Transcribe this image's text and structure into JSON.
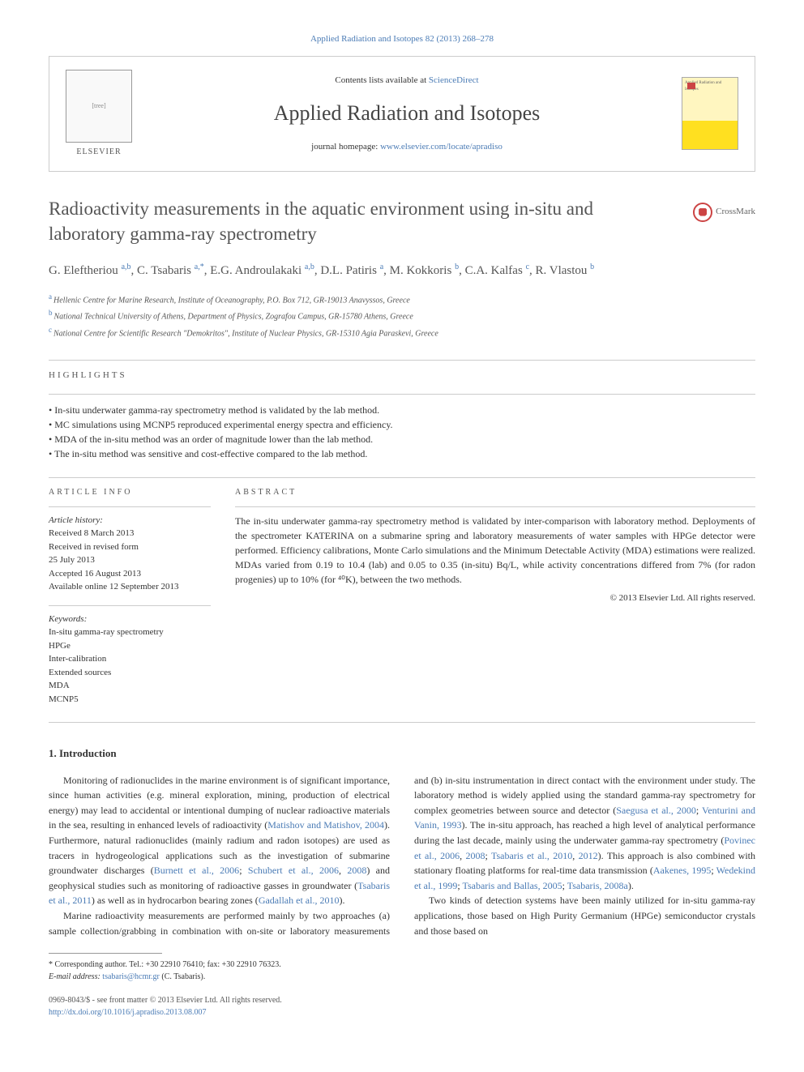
{
  "top_link": "Applied Radiation and Isotopes 82 (2013) 268–278",
  "header": {
    "contents_prefix": "Contents lists available at ",
    "contents_link": "ScienceDirect",
    "journal_name": "Applied Radiation and Isotopes",
    "homepage_prefix": "journal homepage: ",
    "homepage_url": "www.elsevier.com/locate/apradiso",
    "elsevier_label": "ELSEVIER",
    "cover_label": "Applied Radiation and Isotopes"
  },
  "article": {
    "title": "Radioactivity measurements in the aquatic environment using in-situ and laboratory gamma-ray spectrometry",
    "crossmark": "CrossMark",
    "authors_html": "G. Eleftheriou <span class='sup'>a,b</span>, C. Tsabaris <span class='sup'>a,*</span>, E.G. Androulakaki <span class='sup'>a,b</span>, D.L. Patiris <span class='sup'>a</span>, M. Kokkoris <span class='sup'>b</span>, C.A. Kalfas <span class='sup'>c</span>, R. Vlastou <span class='sup'>b</span>",
    "affiliations": [
      {
        "sup": "a",
        "text": "Hellenic Centre for Marine Research, Institute of Oceanography, P.O. Box 712, GR-19013 Anavyssos, Greece"
      },
      {
        "sup": "b",
        "text": "National Technical University of Athens, Department of Physics, Zografou Campus, GR-15780 Athens, Greece"
      },
      {
        "sup": "c",
        "text": "National Centre for Scientific Research \"Demokritos\", Institute of Nuclear Physics, GR-15310 Agia Paraskevi, Greece"
      }
    ]
  },
  "highlights": {
    "heading": "HIGHLIGHTS",
    "items": [
      "In-situ underwater gamma-ray spectrometry method is validated by the lab method.",
      "MC simulations using MCNP5 reproduced experimental energy spectra and efficiency.",
      "MDA of the in-situ method was an order of magnitude lower than the lab method.",
      "The in-situ method was sensitive and cost-effective compared to the lab method."
    ]
  },
  "article_info": {
    "heading": "ARTICLE INFO",
    "history_label": "Article history:",
    "history": [
      "Received 8 March 2013",
      "Received in revised form",
      "25 July 2013",
      "Accepted 16 August 2013",
      "Available online 12 September 2013"
    ],
    "keywords_label": "Keywords:",
    "keywords": [
      "In-situ gamma-ray spectrometry",
      "HPGe",
      "Inter-calibration",
      "Extended sources",
      "MDA",
      "MCNP5"
    ]
  },
  "abstract": {
    "heading": "ABSTRACT",
    "text": "The in-situ underwater gamma-ray spectrometry method is validated by inter-comparison with laboratory method. Deployments of the spectrometer KATERINA on a submarine spring and laboratory measurements of water samples with HPGe detector were performed. Efficiency calibrations, Monte Carlo simulations and the Minimum Detectable Activity (MDA) estimations were realized. MDAs varied from 0.19 to 10.4 (lab) and 0.05 to 0.35 (in-situ) Bq/L, while activity concentrations differed from 7% (for radon progenies) up to 10% (for ⁴⁰K), between the two methods.",
    "copyright": "© 2013 Elsevier Ltd. All rights reserved."
  },
  "intro": {
    "heading": "1.  Introduction",
    "p1_pre": "Monitoring of radionuclides in the marine environment is of significant importance, since human activities (e.g. mineral exploration, mining, production of electrical energy) may lead to accidental or intentional dumping of nuclear radioactive materials in the sea, resulting in enhanced levels of radioactivity (",
    "p1_cite1": "Matishov and Matishov, 2004",
    "p1_mid1": "). Furthermore, natural radionuclides (mainly radium and radon isotopes) are used as tracers in hydrogeological applications such as the investigation of submarine groundwater discharges (",
    "p1_cite2": "Burnett et al., 2006",
    "p1_sep2": "; ",
    "p1_cite3": "Schubert et al., 2006",
    "p1_sep3": ", ",
    "p1_cite4": "2008",
    "p1_mid2": ") and geophysical studies such as monitoring of radioactive gasses in groundwater (",
    "p1_cite5": "Tsabaris et al., 2011",
    "p1_mid3": ") as well as in hydrocarbon bearing zones (",
    "p1_cite6": "Gadallah et al., 2010",
    "p1_end": ").",
    "p2_pre": "Marine radioactivity measurements are performed mainly by two approaches (a) sample collection/grabbing in combination with on-site or laboratory measurements and (b) in-situ instrumentation in direct contact with the environment under study. The laboratory method is widely applied using the standard gamma-ray spectrometry for complex geometries between source and detector (",
    "p2_cite1": "Saegusa et al., 2000",
    "p2_sep1": "; ",
    "p2_cite2": "Venturini and Vanin, 1993",
    "p2_mid1": "). The in-situ approach, has reached a high level of analytical performance during the last decade, mainly using the underwater gamma-ray spectrometry (",
    "p2_cite3": "Povinec et al., 2006",
    "p2_sep3": ", ",
    "p2_cite4": "2008",
    "p2_sep4": "; ",
    "p2_cite5": "Tsabaris et al., 2010",
    "p2_sep5": ", ",
    "p2_cite6": "2012",
    "p2_mid2": "). This approach is also combined with stationary floating platforms for real-time data transmission (",
    "p2_cite7": "Aakenes, 1995",
    "p2_sep7": "; ",
    "p2_cite8": "Wedekind et al., 1999",
    "p2_sep8": "; ",
    "p2_cite9": "Tsabaris and Ballas, 2005",
    "p2_sep9": "; ",
    "p2_cite10": "Tsabaris, 2008a",
    "p2_end": ").",
    "p3": "Two kinds of detection systems have been mainly utilized for in-situ gamma-ray applications, those based on High Purity Germanium (HPGe) semiconductor crystals and those based on"
  },
  "footnote": {
    "star": "* Corresponding author. Tel.: +30 22910 76410; fax: +30 22910 76323.",
    "email_label": "E-mail address: ",
    "email": "tsabaris@hcmr.gr",
    "email_suffix": " (C. Tsabaris)."
  },
  "bottom": {
    "issn": "0969-8043/$ - see front matter © 2013 Elsevier Ltd. All rights reserved.",
    "doi": "http://dx.doi.org/10.1016/j.apradiso.2013.08.007"
  },
  "colors": {
    "link": "#4a7bb5",
    "text": "#333333",
    "heading": "#555555",
    "border": "#cccccc"
  }
}
